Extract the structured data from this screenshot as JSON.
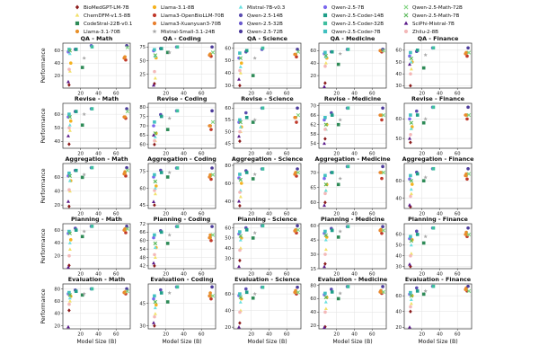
{
  "chart_data": {
    "type": "scatter",
    "xlabel": "Model Size (B)",
    "ylabel": "Performance",
    "x_ticks": [
      20,
      40,
      60
    ],
    "xlim": [
      0,
      76
    ],
    "tasks": [
      "QA",
      "Revise",
      "Aggregation",
      "Planning",
      "Evaluation"
    ],
    "domains": [
      "Math",
      "Coding",
      "Science",
      "Medicine",
      "Finance"
    ],
    "legend_position": "top, 3 rows",
    "models": [
      {
        "name": "BioMedGPT-LM-7B",
        "size": 7,
        "color": "#8b1a1a",
        "marker": "diamond"
      },
      {
        "name": "ChemDFM-v1.5-8B",
        "size": 8,
        "color": "#f2e16b",
        "marker": "triangle"
      },
      {
        "name": "CodeStral-22B-v0.1",
        "size": 22,
        "color": "#2e8b57",
        "marker": "square"
      },
      {
        "name": "Llama-3.1-70B",
        "size": 70,
        "color": "#e8902a",
        "marker": "circle"
      },
      {
        "name": "Llama-3.1-8B",
        "size": 8,
        "color": "#f5b21f",
        "marker": "circle"
      },
      {
        "name": "Llama3-OpenBioLLM-70B",
        "size": 70,
        "color": "#c0392b",
        "marker": "circle"
      },
      {
        "name": "Llama3-Xuanyuan3-70B",
        "size": 70,
        "color": "#e87f2e",
        "marker": "circle"
      },
      {
        "name": "Llama-3.1-70B",
        "size": 70,
        "color": "#e8902a",
        "marker": "circle"
      },
      {
        "name": "Mistral-Small-3.1-24B",
        "size": 24,
        "color": "#a6a6a6",
        "marker": "star"
      },
      {
        "name": "Mistral-7B-v0.3",
        "size": 7,
        "color": "#6be0e0",
        "marker": "triangle"
      },
      {
        "name": "Qwen-2.5-14B",
        "size": 14,
        "color": "#5b4db0",
        "marker": "circle"
      },
      {
        "name": "Qwen-2.5-32B",
        "size": 32,
        "color": "#6a5acd",
        "marker": "circle"
      },
      {
        "name": "Qwen-2.5-72B",
        "size": 72,
        "color": "#4b3a9a",
        "marker": "circle"
      },
      {
        "name": "Qwen-2.5-7B",
        "size": 7,
        "color": "#7b68ee",
        "marker": "circle"
      },
      {
        "name": "Qwen-2.5-Coder-14B",
        "size": 14,
        "color": "#1f9e89",
        "marker": "square"
      },
      {
        "name": "Qwen-2.5-Coder-32B",
        "size": 32,
        "color": "#3fbf9f",
        "marker": "square"
      },
      {
        "name": "Qwen-2.5-Coder-7B",
        "size": 7,
        "color": "#40c0c0",
        "marker": "square"
      },
      {
        "name": "Qwen-2.5-Math-72B",
        "size": 72,
        "color": "#7fd37f",
        "marker": "x"
      },
      {
        "name": "Qwen-2.5-Math-7B",
        "size": 7,
        "color": "#5bb85b",
        "marker": "x"
      },
      {
        "name": "SciPhi-Mistral-7B",
        "size": 7,
        "color": "#5a1a8a",
        "marker": "triangle"
      },
      {
        "name": "Zhilu-2-8B",
        "size": 8,
        "color": "#f3b8b8",
        "marker": "circle"
      }
    ],
    "legend": [
      {
        "label": "BioMedGPT-LM-7B",
        "color": "#8b1a1a",
        "marker": "diamond"
      },
      {
        "label": "ChemDFM-v1.5-8B",
        "color": "#f2e16b",
        "marker": "triangle"
      },
      {
        "label": "CodeStral-22B-v0.1",
        "color": "#2e8b57",
        "marker": "square"
      },
      {
        "label": "Llama-3.1-70B",
        "color": "#e8902a",
        "marker": "circle"
      },
      {
        "label": "Llama-3.1-8B",
        "color": "#f5b21f",
        "marker": "circle"
      },
      {
        "label": "Llama3-OpenBioLLM-70B",
        "color": "#c0392b",
        "marker": "circle"
      },
      {
        "label": "Llama3-Xuanyuan3-70B",
        "color": "#e87f2e",
        "marker": "circle"
      },
      {
        "label": "Mistral-Small-3.1-24B",
        "color": "#a6a6a6",
        "marker": "star"
      },
      {
        "label": "Mistral-7B-v0.3",
        "color": "#6be0e0",
        "marker": "triangle"
      },
      {
        "label": "Qwen-2.5-14B",
        "color": "#5b4db0",
        "marker": "circle"
      },
      {
        "label": "Qwen-2.5-32B",
        "color": "#6a5acd",
        "marker": "circle"
      },
      {
        "label": "Qwen-2.5-72B",
        "color": "#4b3a9a",
        "marker": "circle"
      },
      {
        "label": "Qwen-2.5-7B",
        "color": "#7b68ee",
        "marker": "circle"
      },
      {
        "label": "Qwen-2.5-Coder-14B",
        "color": "#1f9e89",
        "marker": "square"
      },
      {
        "label": "Qwen-2.5-Coder-32B",
        "color": "#3fbf9f",
        "marker": "square"
      },
      {
        "label": "Qwen-2.5-Coder-7B",
        "color": "#40c0c0",
        "marker": "square"
      },
      {
        "label": "Qwen-2.5-Math-72B",
        "color": "#7fd37f",
        "marker": "x"
      },
      {
        "label": "Qwen-2.5-Math-7B",
        "color": "#5bb85b",
        "marker": "x"
      },
      {
        "label": "SciPhi-Mistral-7B",
        "color": "#5a1a8a",
        "marker": "triangle"
      },
      {
        "label": "Zhilu-2-8B",
        "color": "#f3b8b8",
        "marker": "circle"
      }
    ],
    "panels": [
      {
        "title": "QA - Math",
        "ylim": [
          0,
          72
        ],
        "yticks": [
          20,
          40,
          60
        ],
        "values": [
          5,
          27,
          33,
          50,
          40,
          45,
          48,
          50,
          48,
          55,
          62,
          68,
          68,
          58,
          62,
          66,
          62,
          65,
          60,
          10,
          30
        ]
      },
      {
        "title": "QA - Coding",
        "ylim": [
          0,
          82
        ],
        "yticks": [
          25,
          50,
          75
        ],
        "values": [
          8,
          18,
          65,
          62,
          55,
          58,
          60,
          62,
          65,
          58,
          72,
          75,
          75,
          68,
          72,
          75,
          70,
          65,
          60,
          5,
          30
        ]
      },
      {
        "title": "QA - Science",
        "ylim": [
          28,
          64
        ],
        "yticks": [
          30,
          40,
          50,
          60
        ],
        "values": [
          30,
          40,
          38,
          55,
          48,
          53,
          55,
          55,
          52,
          45,
          57,
          59,
          59,
          52,
          58,
          60,
          56,
          57,
          52,
          35,
          42
        ]
      },
      {
        "title": "QA - Medicine",
        "ylim": [
          0,
          72
        ],
        "yticks": [
          20,
          40,
          60
        ],
        "values": [
          8,
          40,
          38,
          60,
          48,
          58,
          60,
          60,
          55,
          50,
          58,
          62,
          62,
          55,
          58,
          62,
          57,
          60,
          52,
          2,
          35
        ]
      },
      {
        "title": "QA - Finance",
        "ylim": [
          28,
          66
        ],
        "yticks": [
          30,
          40,
          50,
          60
        ],
        "values": [
          30,
          44,
          45,
          58,
          50,
          55,
          57,
          58,
          56,
          50,
          59,
          62,
          62,
          55,
          60,
          62,
          58,
          58,
          53,
          48,
          40
        ]
      },
      {
        "title": "Revise - Math",
        "ylim": [
          35,
          68
        ],
        "yticks": [
          40,
          50,
          60
        ],
        "values": [
          38,
          48,
          52,
          58,
          55,
          57,
          58,
          58,
          60,
          52,
          62,
          64,
          64,
          58,
          62,
          64,
          60,
          62,
          58,
          44,
          50
        ]
      },
      {
        "title": "Revise - Coding",
        "ylim": [
          58,
          82
        ],
        "yticks": [
          60,
          65,
          70,
          75,
          80
        ],
        "values": [
          60,
          62,
          68,
          70,
          66,
          68,
          70,
          70,
          74,
          64,
          76,
          78,
          78,
          70,
          75,
          78,
          72,
          72,
          66,
          65,
          62
        ]
      },
      {
        "title": "Revise - Science",
        "ylim": [
          43,
          62
        ],
        "yticks": [
          45,
          50,
          55,
          60
        ],
        "values": [
          46,
          50,
          54,
          56,
          52,
          54,
          56,
          56,
          55,
          52,
          58,
          60,
          60,
          54,
          56,
          60,
          55,
          57,
          54,
          48,
          50
        ]
      },
      {
        "title": "Revise - Medicine",
        "ylim": [
          52,
          71
        ],
        "yticks": [
          54,
          58,
          62,
          66,
          70
        ],
        "values": [
          56,
          60,
          62,
          66,
          62,
          64,
          66,
          66,
          64,
          60,
          67,
          69,
          69,
          64,
          66,
          69,
          65,
          66,
          62,
          54,
          60
        ]
      },
      {
        "title": "Revise - Finance",
        "ylim": [
          45,
          68
        ],
        "yticks": [
          50,
          60
        ],
        "values": [
          48,
          55,
          58,
          62,
          56,
          60,
          62,
          62,
          60,
          55,
          64,
          66,
          66,
          60,
          62,
          66,
          62,
          62,
          58,
          50,
          52
        ]
      },
      {
        "title": "Aggregation - Math",
        "ylim": [
          15,
          80
        ],
        "yticks": [
          20,
          40,
          60
        ],
        "values": [
          18,
          40,
          60,
          68,
          55,
          62,
          65,
          66,
          64,
          55,
          70,
          74,
          74,
          62,
          70,
          74,
          66,
          70,
          62,
          25,
          42
        ]
      },
      {
        "title": "Aggregation - Coding",
        "ylim": [
          42,
          82
        ],
        "yticks": [
          45,
          60,
          75
        ],
        "values": [
          45,
          55,
          70,
          72,
          62,
          68,
          70,
          71,
          74,
          60,
          76,
          78,
          78,
          70,
          74,
          78,
          72,
          72,
          66,
          48,
          58
        ]
      },
      {
        "title": "Aggregation - Science",
        "ylim": [
          32,
          82
        ],
        "yticks": [
          40,
          60,
          80
        ],
        "values": [
          35,
          45,
          65,
          72,
          60,
          68,
          70,
          72,
          70,
          52,
          74,
          76,
          76,
          66,
          72,
          76,
          70,
          72,
          64,
          40,
          50
        ]
      },
      {
        "title": "Aggregation - Medicine",
        "ylim": [
          58,
          73
        ],
        "yticks": [
          60,
          65,
          70
        ],
        "values": [
          60,
          64,
          66,
          70,
          66,
          68,
          70,
          70,
          68,
          64,
          70,
          72,
          72,
          68,
          70,
          72,
          69,
          70,
          66,
          59,
          63
        ]
      },
      {
        "title": "Aggregation - Finance",
        "ylim": [
          28,
          80
        ],
        "yticks": [
          40,
          60
        ],
        "values": [
          30,
          45,
          60,
          68,
          56,
          62,
          66,
          66,
          64,
          50,
          70,
          74,
          74,
          62,
          68,
          74,
          66,
          68,
          60,
          32,
          42
        ]
      },
      {
        "title": "Planning - Math",
        "ylim": [
          0,
          70
        ],
        "yticks": [
          20,
          40,
          60
        ],
        "values": [
          5,
          30,
          50,
          62,
          45,
          56,
          60,
          60,
          58,
          40,
          63,
          66,
          66,
          55,
          60,
          66,
          58,
          62,
          55,
          2,
          20
        ]
      },
      {
        "title": "Planning - Coding",
        "ylim": [
          40,
          72
        ],
        "yticks": [
          42,
          48,
          54,
          60,
          66,
          72
        ],
        "values": [
          42,
          48,
          58,
          64,
          55,
          60,
          62,
          62,
          64,
          55,
          67,
          70,
          70,
          62,
          66,
          70,
          64,
          64,
          58,
          44,
          50
        ]
      },
      {
        "title": "Planning - Science",
        "ylim": [
          20,
          64
        ],
        "yticks": [
          30,
          40,
          50,
          60
        ],
        "values": [
          28,
          40,
          50,
          58,
          50,
          55,
          57,
          57,
          55,
          48,
          60,
          62,
          62,
          54,
          58,
          62,
          56,
          58,
          52,
          22,
          38
        ]
      },
      {
        "title": "Planning - Medicine",
        "ylim": [
          15,
          62
        ],
        "yticks": [
          15,
          30,
          45,
          60
        ],
        "values": [
          20,
          35,
          48,
          56,
          48,
          52,
          55,
          55,
          54,
          45,
          57,
          59,
          59,
          52,
          55,
          59,
          54,
          55,
          50,
          17,
          30
        ]
      },
      {
        "title": "Planning - Finance",
        "ylim": [
          28,
          70
        ],
        "yticks": [
          30,
          40,
          50,
          60
        ],
        "values": [
          30,
          42,
          52,
          62,
          55,
          58,
          60,
          60,
          58,
          50,
          63,
          66,
          66,
          56,
          60,
          66,
          58,
          60,
          54,
          32,
          40
        ]
      },
      {
        "title": "Evaluation - Math",
        "ylim": [
          15,
          88
        ],
        "yticks": [
          20,
          40,
          60,
          80
        ],
        "values": [
          45,
          60,
          70,
          75,
          68,
          72,
          74,
          74,
          72,
          65,
          78,
          80,
          80,
          72,
          76,
          80,
          74,
          76,
          70,
          18,
          55
        ]
      },
      {
        "title": "Evaluation - Coding",
        "ylim": [
          28,
          58
        ],
        "yticks": [
          30,
          45
        ],
        "values": [
          30,
          38,
          46,
          52,
          44,
          48,
          50,
          50,
          52,
          42,
          54,
          56,
          56,
          48,
          52,
          56,
          50,
          50,
          46,
          32,
          36
        ]
      },
      {
        "title": "Evaluation - Science",
        "ylim": [
          18,
          72
        ],
        "yticks": [
          20,
          40,
          60
        ],
        "values": [
          25,
          40,
          55,
          64,
          54,
          60,
          62,
          62,
          60,
          50,
          66,
          68,
          68,
          58,
          62,
          68,
          60,
          62,
          56,
          20,
          38
        ]
      },
      {
        "title": "Evaluation - Medicine",
        "ylim": [
          15,
          82
        ],
        "yticks": [
          20,
          40,
          60,
          80
        ],
        "values": [
          18,
          45,
          60,
          72,
          62,
          68,
          70,
          70,
          68,
          55,
          74,
          78,
          78,
          66,
          70,
          78,
          68,
          70,
          62,
          17,
          40
        ]
      },
      {
        "title": "Evaluation - Finance",
        "ylim": [
          18,
          75
        ],
        "yticks": [
          20,
          40,
          60
        ],
        "values": [
          40,
          50,
          62,
          70,
          60,
          66,
          68,
          68,
          66,
          55,
          70,
          72,
          72,
          62,
          66,
          72,
          64,
          66,
          60,
          20,
          46
        ]
      }
    ]
  }
}
